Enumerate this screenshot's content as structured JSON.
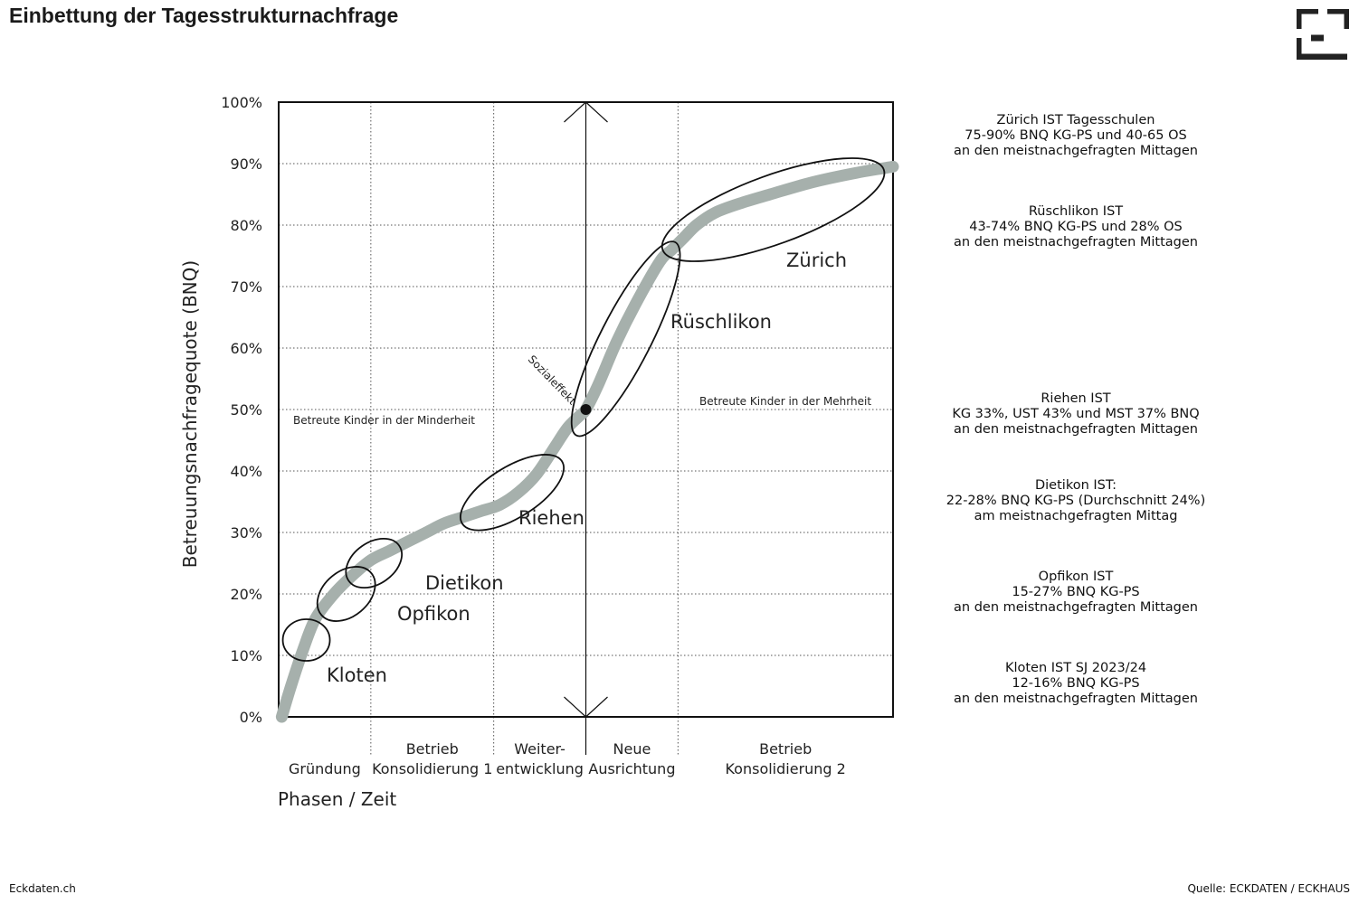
{
  "page": {
    "title": "Einbettung der Tagesstrukturnachfrage",
    "footer_left": "Eckdaten.ch",
    "footer_right": "Quelle: ECKDATEN / ECKHAUS",
    "logo_icon": "eckhaus-logo-icon"
  },
  "chart_data": {
    "type": "line",
    "title": "",
    "ylabel": "Betreuungsnachfragequote (BNQ)",
    "xlabel": "Phasen / Zeit",
    "ylim": [
      0,
      100
    ],
    "y_ticks": [
      "0%",
      "10%",
      "20%",
      "30%",
      "40%",
      "50%",
      "60%",
      "70%",
      "80%",
      "90%",
      "100%"
    ],
    "grid": true,
    "x_range": [
      0,
      100
    ],
    "x_tick_positions": [
      15,
      35,
      50,
      65
    ],
    "phases": [
      {
        "label": "Gründung",
        "from": 0,
        "to": 15
      },
      {
        "label": "Betrieb\nKonsolidierung 1",
        "from": 15,
        "to": 35
      },
      {
        "label": "Weiter-\nentwicklung",
        "from": 35,
        "to": 50
      },
      {
        "label": "Neue\nAusrichtung",
        "from": 50,
        "to": 65
      },
      {
        "label": "Betrieb\nKonsolidierung 2",
        "from": 65,
        "to": 100
      }
    ],
    "curve_color": "#a6b0ac",
    "curve": {
      "x": [
        0.5,
        2,
        4,
        6,
        9,
        12,
        15,
        18,
        21,
        24,
        27,
        30,
        33,
        36,
        39,
        42,
        45,
        47,
        49,
        50,
        52,
        55,
        58,
        62,
        64,
        66,
        68,
        71,
        75,
        80,
        87,
        94,
        100
      ],
      "y": [
        0,
        5,
        11,
        16,
        20,
        23,
        25.5,
        27,
        28.5,
        30,
        31.5,
        32.5,
        33.5,
        34.5,
        36.5,
        39.5,
        44,
        47,
        49,
        50,
        54,
        61,
        67,
        74,
        76,
        78,
        80,
        82,
        83.5,
        85,
        87,
        88.5,
        89.5
      ]
    },
    "marker": {
      "x": 50,
      "y": 50,
      "label": "Sozialeffekt"
    },
    "vertical_arrow_x": 50,
    "regions": [
      {
        "label": "Kloten",
        "cx": 4.5,
        "cy": 12.5
      },
      {
        "label": "Opfikon",
        "cx": 11,
        "cy": 20
      },
      {
        "label": "Dietikon",
        "cx": 15.5,
        "cy": 25
      },
      {
        "label": "Riehen",
        "cx": 38,
        "cy": 36.5
      },
      {
        "label": "Rüschlikon",
        "cx": 56.5,
        "cy": 61.5
      },
      {
        "label": "Zürich",
        "cx": 80.5,
        "cy": 82.5
      }
    ],
    "annotations": {
      "minority": "Betreute Kinder in der Minderheit",
      "majority": "Betreute Kinder in der Mehrheit"
    }
  },
  "info_blocks": [
    {
      "lines": [
        "Zürich IST Tagesschulen",
        "75-90% BNQ KG-PS und 40-65 OS",
        "an den meistnachgefragten Mittagen"
      ]
    },
    {
      "lines": [
        "Rüschlikon IST",
        "43-74% BNQ KG-PS und 28% OS",
        "an den meistnachgefragten Mittagen"
      ]
    },
    {
      "lines": [
        "Riehen IST",
        "KG 33%, UST 43%  und MST 37% BNQ",
        "an den meistnachgefragten Mittagen"
      ]
    },
    {
      "lines": [
        "Dietikon IST:",
        "22-28% BNQ KG-PS (Durchschnitt 24%)",
        "am meistnachgefragten Mittag"
      ]
    },
    {
      "lines": [
        "Opfikon IST",
        "15-27% BNQ KG-PS",
        "an den meistnachgefragten Mittagen"
      ]
    },
    {
      "lines": [
        "Kloten IST SJ 2023/24",
        "12-16% BNQ KG-PS",
        "an den meistnachgefragten Mittagen"
      ]
    }
  ]
}
